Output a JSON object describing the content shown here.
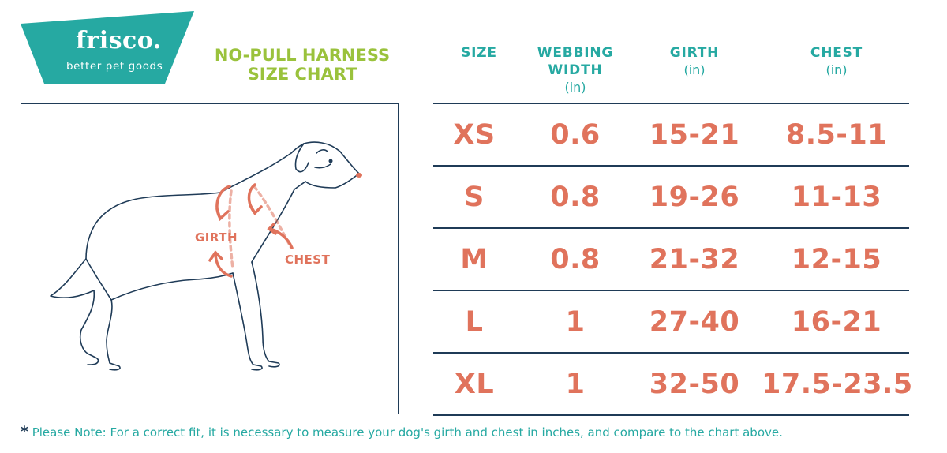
{
  "logo": {
    "name": "frisco.",
    "tagline": "better pet goods"
  },
  "title": {
    "line1": "NO-PULL HARNESS",
    "line2": "SIZE CHART"
  },
  "illustration": {
    "girth_label": "GIRTH",
    "chest_label": "CHEST",
    "icon": "dog-outline"
  },
  "table": {
    "headers": [
      {
        "lines": [
          "SIZE"
        ],
        "unit": ""
      },
      {
        "lines": [
          "WEBBING",
          "WIDTH"
        ],
        "unit": "(in)"
      },
      {
        "lines": [
          "GIRTH"
        ],
        "unit": "(in)"
      },
      {
        "lines": [
          "CHEST"
        ],
        "unit": "(in)"
      }
    ],
    "rows": [
      [
        "XS",
        "0.6",
        "15-21",
        "8.5-11"
      ],
      [
        "S",
        "0.8",
        "19-26",
        "11-13"
      ],
      [
        "M",
        "0.8",
        "21-32",
        "12-15"
      ],
      [
        "L",
        "1",
        "27-40",
        "16-21"
      ],
      [
        "XL",
        "1",
        "32-50",
        "17.5-23.5"
      ]
    ]
  },
  "note": {
    "star": "*",
    "text": "Please Note: For a correct fit, it is necessary to measure your dog's girth and chest in inches, and compare to the chart above."
  },
  "colors": {
    "teal": "#26a9a2",
    "green": "#9ac23c",
    "coral": "#e0735c",
    "navy": "#1f3b57"
  }
}
